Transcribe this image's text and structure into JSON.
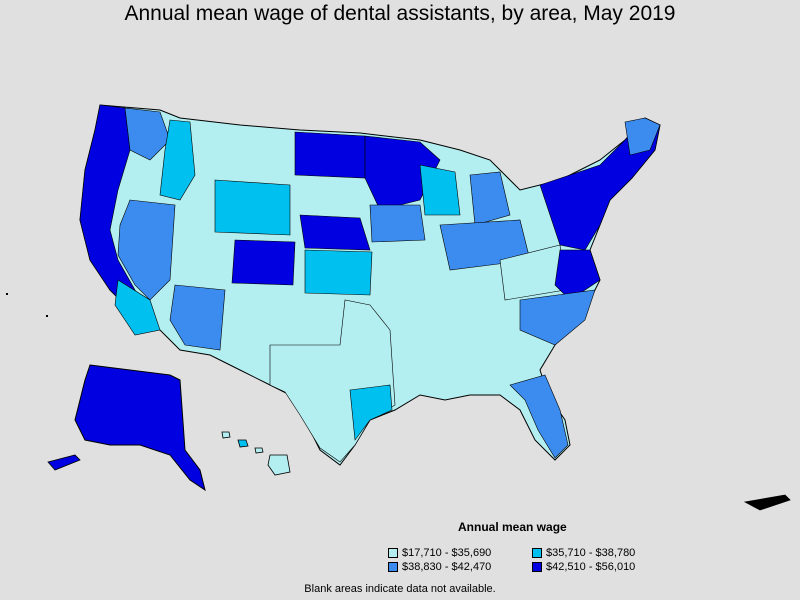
{
  "title": "Annual mean wage of dental assistants, by area, May 2019",
  "legend": {
    "title": "Annual mean wage",
    "items": [
      {
        "label": "$17,710 - $35,690",
        "color": "#b3eef0"
      },
      {
        "label": "$35,710 - $38,780",
        "color": "#00c0f0"
      },
      {
        "label": "$38,830 - $42,470",
        "color": "#3c8cf0"
      },
      {
        "label": "$42,510 - $56,010",
        "color": "#0000e0"
      }
    ]
  },
  "footnote": "Blank areas indicate data not available.",
  "colors": {
    "background": "#e0e0e0",
    "border": "#000000"
  }
}
